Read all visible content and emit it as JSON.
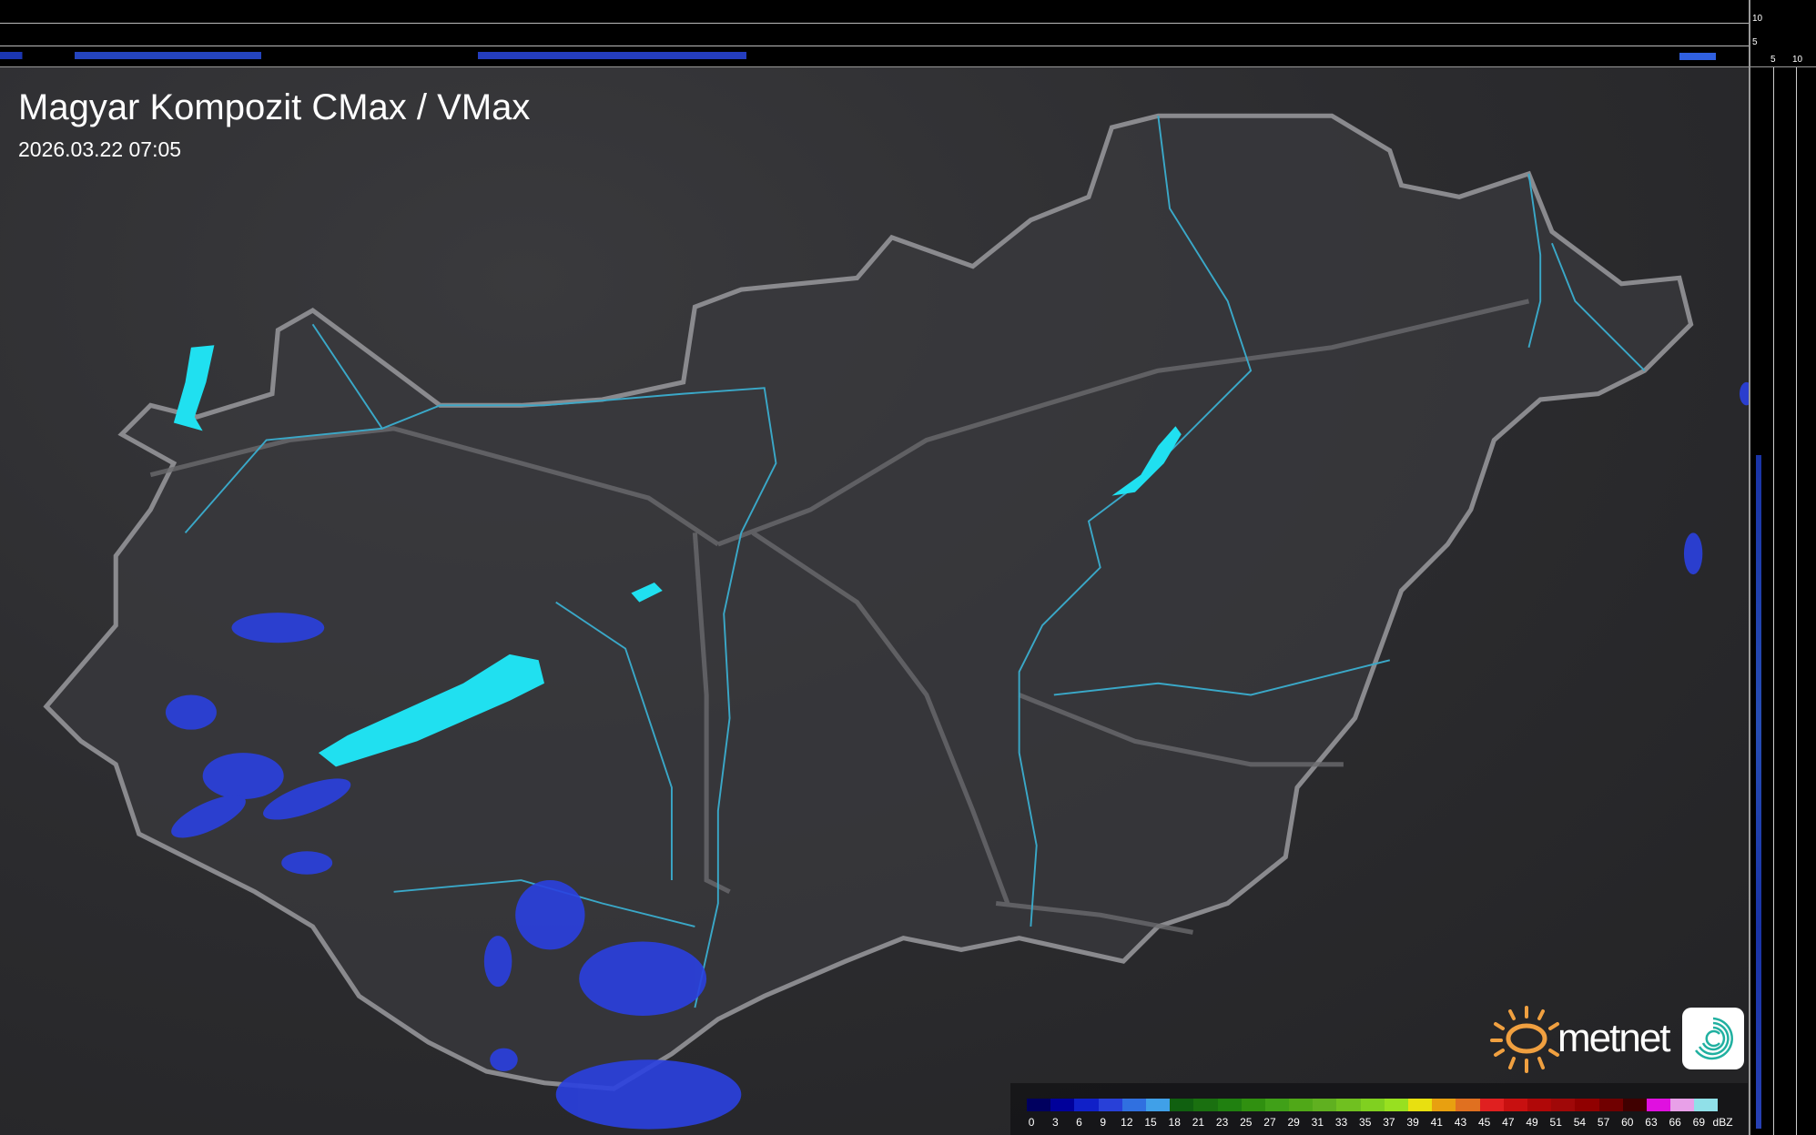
{
  "header": {
    "title": "Magyar Kompozit CMax / VMax",
    "timestamp": "2026.03.22 07:05"
  },
  "profile_axes": {
    "top_ticks": [
      "10",
      "5"
    ],
    "right_ticks": [
      "5",
      "10"
    ]
  },
  "legend": {
    "unit": "dBZ",
    "labels": [
      "0",
      "3",
      "6",
      "9",
      "12",
      "15",
      "18",
      "21",
      "23",
      "25",
      "27",
      "29",
      "31",
      "33",
      "35",
      "37",
      "39",
      "41",
      "43",
      "45",
      "47",
      "49",
      "51",
      "54",
      "57",
      "60",
      "63",
      "66",
      "69"
    ],
    "colors": [
      "#00005f",
      "#00009a",
      "#1020c8",
      "#2840d8",
      "#3070e0",
      "#40a0e8",
      "#106010",
      "#1a7010",
      "#208010",
      "#309010",
      "#40a018",
      "#50a818",
      "#60b020",
      "#70c020",
      "#80d020",
      "#98e020",
      "#e8e010",
      "#e8a010",
      "#e07020",
      "#e02020",
      "#c81010",
      "#b00808",
      "#a00808",
      "#900000",
      "#700000",
      "#400000",
      "#e010e0",
      "#e8a0e8",
      "#90e0e8"
    ]
  },
  "branding": {
    "logo_text": "metnet",
    "sun_color": "#f0a040",
    "icon_color": "#20b0a0"
  },
  "map_colors": {
    "border": "#8a8a8e",
    "rivers": "#3aa8c8",
    "lakes": "#20e0f0",
    "rain_light": "#2a40e0"
  }
}
